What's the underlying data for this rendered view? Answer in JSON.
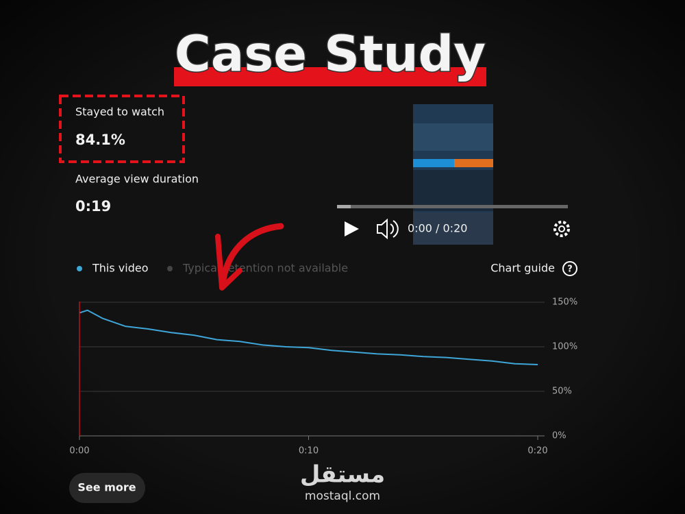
{
  "header": {
    "title": "Case Study"
  },
  "stats": [
    {
      "label": "Stayed to watch",
      "value": "84.1%"
    },
    {
      "label": "Average view duration",
      "value": "0:19"
    }
  ],
  "player": {
    "time": "0:00 / 0:20"
  },
  "legend_note": "Typical retention not available",
  "chart_guide": "Chart guide",
  "button": "See more",
  "watermark": {
    "arabic": "مستقل",
    "latin": "mostaql.com"
  },
  "chart_data": {
    "type": "line",
    "x": [
      0,
      0.35,
      1,
      2,
      3,
      4,
      5,
      6,
      7,
      8,
      9,
      10,
      11,
      12,
      13,
      14,
      15,
      16,
      17,
      18,
      19,
      20
    ],
    "series": [
      {
        "name": "This video",
        "color": "#3ea6d8",
        "values": [
          138,
          141,
          132,
          123,
          120,
          116,
          113,
          108,
          106,
          102,
          100,
          99,
          96,
          94,
          92,
          91,
          89,
          88,
          86,
          84,
          81,
          80
        ]
      }
    ],
    "xlim": [
      0,
      20
    ],
    "xticks": [
      {
        "value": 0,
        "label": "0:00"
      },
      {
        "value": 10,
        "label": "0:10"
      },
      {
        "value": 20,
        "label": "0:20"
      }
    ],
    "ylim": [
      0,
      150
    ],
    "yticks": [
      {
        "value": 0,
        "label": "0%"
      },
      {
        "value": 50,
        "label": "50%"
      },
      {
        "value": 100,
        "label": "100%"
      },
      {
        "value": 150,
        "label": "150%"
      }
    ],
    "grid": true
  }
}
